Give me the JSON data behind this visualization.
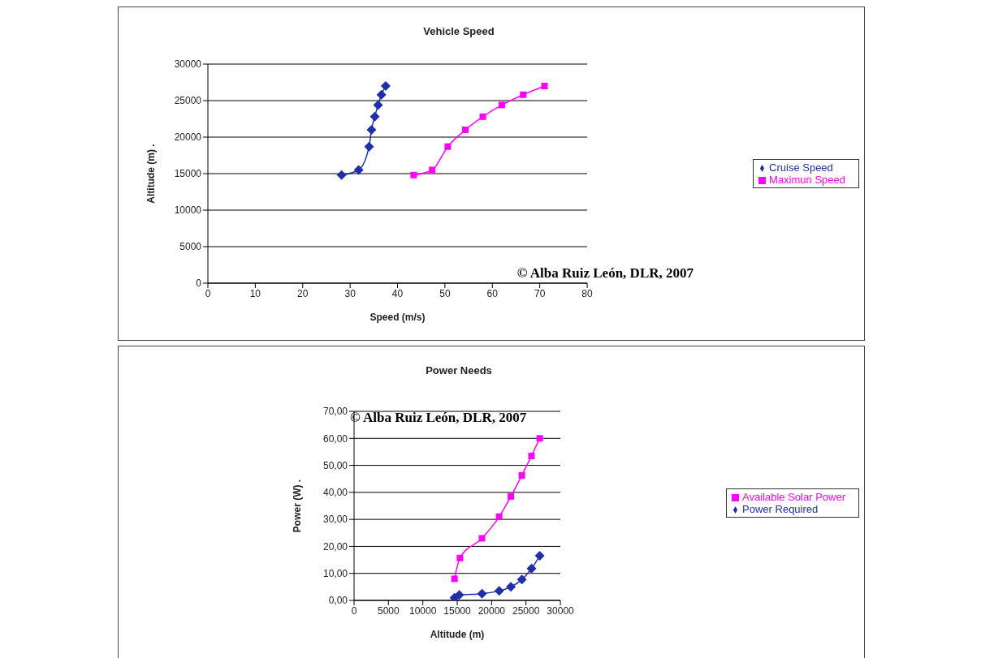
{
  "chart_data": [
    {
      "type": "line",
      "title": "Vehicle Speed",
      "xlabel": "Speed (m/s)",
      "ylabel": "Altitude (m) .",
      "xlim": [
        0,
        80
      ],
      "xticks": [
        0,
        10,
        20,
        30,
        40,
        50,
        60,
        70,
        80
      ],
      "ylim": [
        0,
        30000
      ],
      "yticks": [
        0,
        5000,
        10000,
        15000,
        20000,
        25000,
        30000
      ],
      "grid": "y",
      "legend": "right",
      "line_style": "solid",
      "annotations": [
        "© Alba Ruiz León, DLR, 2007"
      ],
      "series": [
        {
          "name": "Cruise Speed",
          "color": "#1f2fa8",
          "marker": "diamond",
          "x": [
            28.2,
            31.8,
            34.0,
            34.5,
            35.2,
            35.9,
            36.6,
            37.5
          ],
          "values": [
            14800,
            15500,
            18700,
            21000,
            22800,
            24400,
            25800,
            27000
          ]
        },
        {
          "name": "Maximun Speed",
          "color": "#ff00ff",
          "marker": "square",
          "x": [
            43.4,
            47.3,
            50.6,
            54.3,
            58.0,
            62.0,
            66.5,
            71.0
          ],
          "values": [
            14800,
            15500,
            18700,
            21000,
            22800,
            24400,
            25800,
            27000
          ]
        }
      ]
    },
    {
      "type": "line",
      "title": "Power Needs",
      "xlabel": "Altitude (m)",
      "ylabel": "Power (W) .",
      "xlim": [
        0,
        30000
      ],
      "xticks": [
        0,
        5000,
        10000,
        15000,
        20000,
        25000,
        30000
      ],
      "ylim": [
        0,
        70
      ],
      "yticks": [
        {
          "value": 0,
          "label": "0,00"
        },
        {
          "value": 10,
          "label": "10,00"
        },
        {
          "value": 20,
          "label": "20,00"
        },
        {
          "value": 30,
          "label": "30,00"
        },
        {
          "value": 40,
          "label": "40,00"
        },
        {
          "value": 50,
          "label": "50,00"
        },
        {
          "value": 60,
          "label": "60,00"
        },
        {
          "value": 70,
          "label": "70,00"
        }
      ],
      "grid": "y",
      "legend": "right",
      "line_style": "solid",
      "annotations": [
        "© Alba Ruiz León, DLR, 2007"
      ],
      "series": [
        {
          "name": "Power Required",
          "color": "#1f2fa8",
          "marker": "diamond",
          "x": [
            14600,
            15300,
            18600,
            21100,
            22800,
            24400,
            25800,
            27000
          ],
          "values": [
            1.0,
            2.0,
            2.5,
            3.5,
            5.0,
            7.7,
            11.8,
            16.5
          ]
        },
        {
          "name": "Available Solar Power",
          "color": "#ff00ff",
          "marker": "square",
          "x": [
            14600,
            15400,
            18600,
            21100,
            22800,
            24400,
            25800,
            27000
          ],
          "values": [
            8.0,
            15.7,
            23.0,
            31.0,
            38.5,
            46.3,
            53.5,
            60.0
          ]
        }
      ]
    }
  ]
}
